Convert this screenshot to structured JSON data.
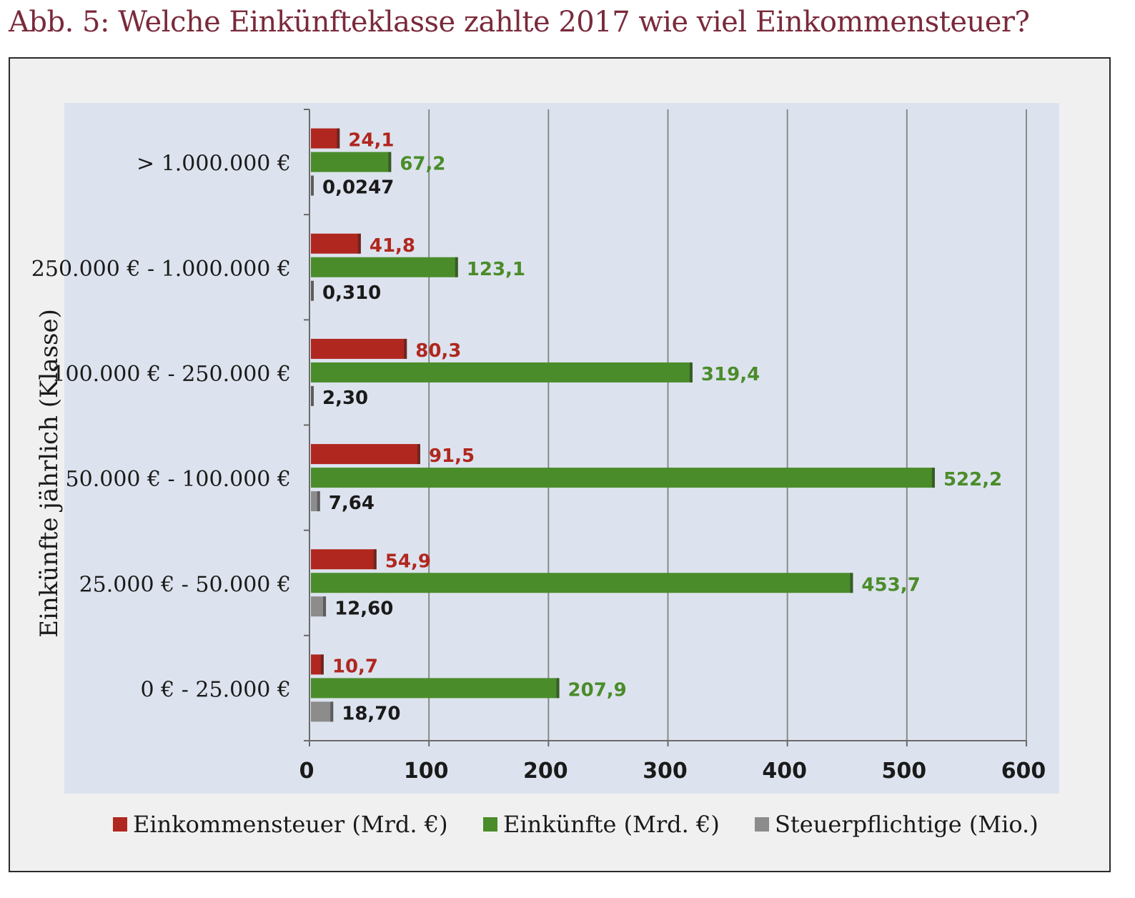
{
  "title": "Abb. 5: Welche Einkünfteklasse zahlte 2017 wie viel Einkommensteuer?",
  "colors": {
    "title": "#7a2a3b",
    "plot_background": "#dde3ee",
    "series": [
      "#b0271f",
      "#4a8c2a",
      "#8c8c8c"
    ],
    "label": [
      "#b0271f",
      "#4a8c2a",
      "#1a1a1a"
    ]
  },
  "chart_data": {
    "type": "bar",
    "orientation": "horizontal",
    "categories": [
      "> 1.000.000 €",
      "250.000 € - 1.000.000 €",
      "100.000 € - 250.000 €",
      "50.000 € - 100.000 €",
      "25.000 € - 50.000 €",
      "0 € - 25.000 €"
    ],
    "series": [
      {
        "name": "Einkommensteuer (Mrd. €)",
        "values": [
          24.1,
          41.8,
          80.3,
          91.5,
          54.9,
          10.7
        ],
        "labels": [
          "24,1",
          "41,8",
          "80,3",
          "91,5",
          "54,9",
          "10,7"
        ]
      },
      {
        "name": "Einkünfte (Mrd. €)",
        "values": [
          67.2,
          123.1,
          319.4,
          522.2,
          453.7,
          207.9
        ],
        "labels": [
          "67,2",
          "123,1",
          "319,4",
          "522,2",
          "453,7",
          "207,9"
        ]
      },
      {
        "name": "Steuerpflichtige (Mio.)",
        "values": [
          0.0247,
          0.31,
          2.3,
          7.64,
          12.6,
          18.7
        ],
        "labels": [
          "0,0247",
          "0,310",
          "2,30",
          "7,64",
          "12,60",
          "18,70"
        ]
      }
    ],
    "xlabel": "",
    "ylabel": "Einkünfte jährlich (Klasse)",
    "xlim": [
      0,
      600
    ],
    "xticks": [
      0,
      100,
      200,
      300,
      400,
      500,
      600
    ],
    "grid": "vertical",
    "legend": "bottom"
  }
}
